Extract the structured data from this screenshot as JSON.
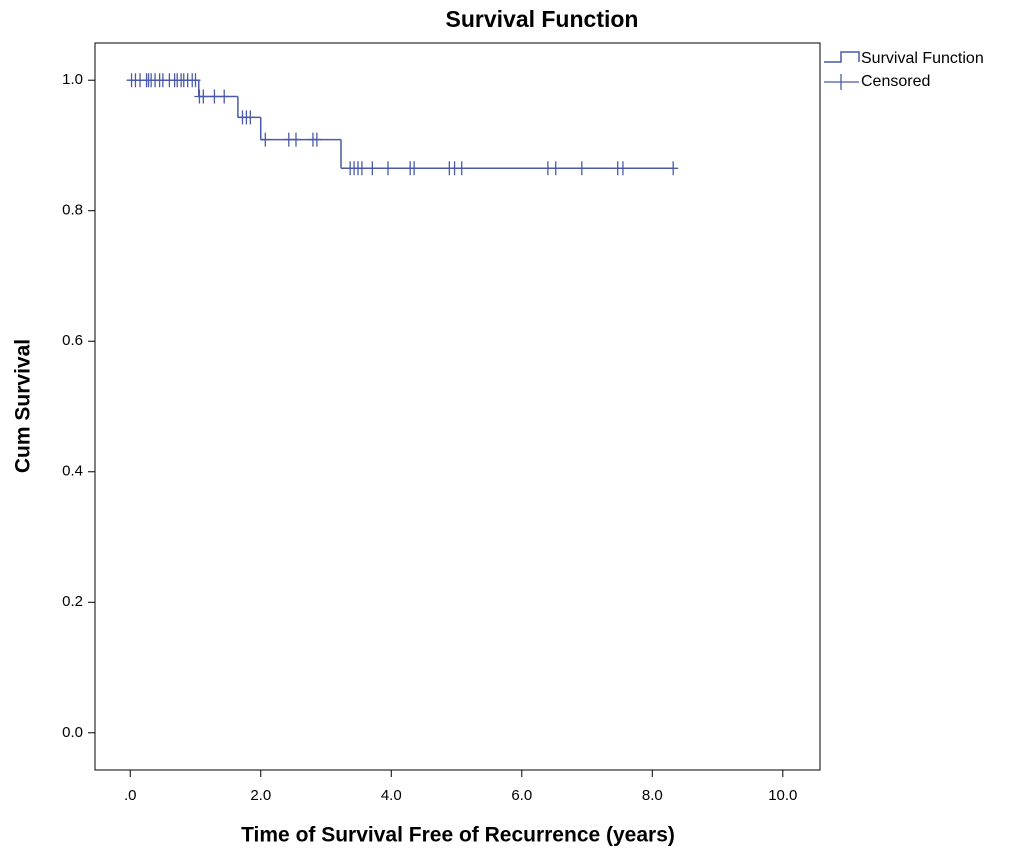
{
  "chart_data": {
    "type": "survival",
    "title": "Survival Function",
    "x_label": "Time of Survival Free of Recurrence (years)",
    "y_label": "Cum Survival",
    "xlim": [
      -0.54,
      10.57
    ],
    "ylim": [
      -0.057,
      1.057
    ],
    "xticks": [
      {
        "value": 0,
        "label": ".0"
      },
      {
        "value": 2,
        "label": "2.0"
      },
      {
        "value": 4,
        "label": "4.0"
      },
      {
        "value": 6,
        "label": "6.0"
      },
      {
        "value": 8,
        "label": "8.0"
      },
      {
        "value": 10,
        "label": "10.0"
      }
    ],
    "yticks": [
      {
        "value": 0,
        "label": "0.0"
      },
      0.2,
      0.4,
      0.6,
      0.8,
      {
        "value": 1,
        "label": "1.0"
      }
    ],
    "grid": false,
    "legend": "outside-right",
    "series": [
      {
        "name": "Survival Function",
        "color": "#4a5aa8",
        "x": [
          0,
          1.05,
          1.65,
          2.0,
          3.23,
          8.32
        ],
        "values": [
          1.0,
          0.975,
          0.943,
          0.909,
          0.865,
          0.865
        ]
      },
      {
        "name": "Censored",
        "color": "#4a5aa8",
        "x": [
          0.02,
          0.08,
          0.15,
          0.25,
          0.28,
          0.32,
          0.38,
          0.45,
          0.5,
          0.6,
          0.68,
          0.72,
          0.78,
          0.82,
          0.88,
          0.95,
          1.0,
          1.06,
          1.12,
          1.29,
          1.44,
          1.72,
          1.78,
          1.84,
          2.07,
          2.43,
          2.54,
          2.8,
          2.86,
          3.37,
          3.43,
          3.49,
          3.55,
          3.71,
          3.95,
          4.29,
          4.35,
          4.89,
          4.97,
          5.08,
          6.4,
          6.52,
          6.92,
          7.47,
          7.55,
          8.32
        ],
        "values": [
          1.0,
          1.0,
          1.0,
          1.0,
          1.0,
          1.0,
          1.0,
          1.0,
          1.0,
          1.0,
          1.0,
          1.0,
          1.0,
          1.0,
          1.0,
          1.0,
          1.0,
          0.975,
          0.975,
          0.975,
          0.975,
          0.943,
          0.943,
          0.943,
          0.909,
          0.909,
          0.909,
          0.909,
          0.909,
          0.865,
          0.865,
          0.865,
          0.865,
          0.865,
          0.865,
          0.865,
          0.865,
          0.865,
          0.865,
          0.865,
          0.865,
          0.865,
          0.865,
          0.865,
          0.865,
          0.865
        ]
      }
    ]
  }
}
